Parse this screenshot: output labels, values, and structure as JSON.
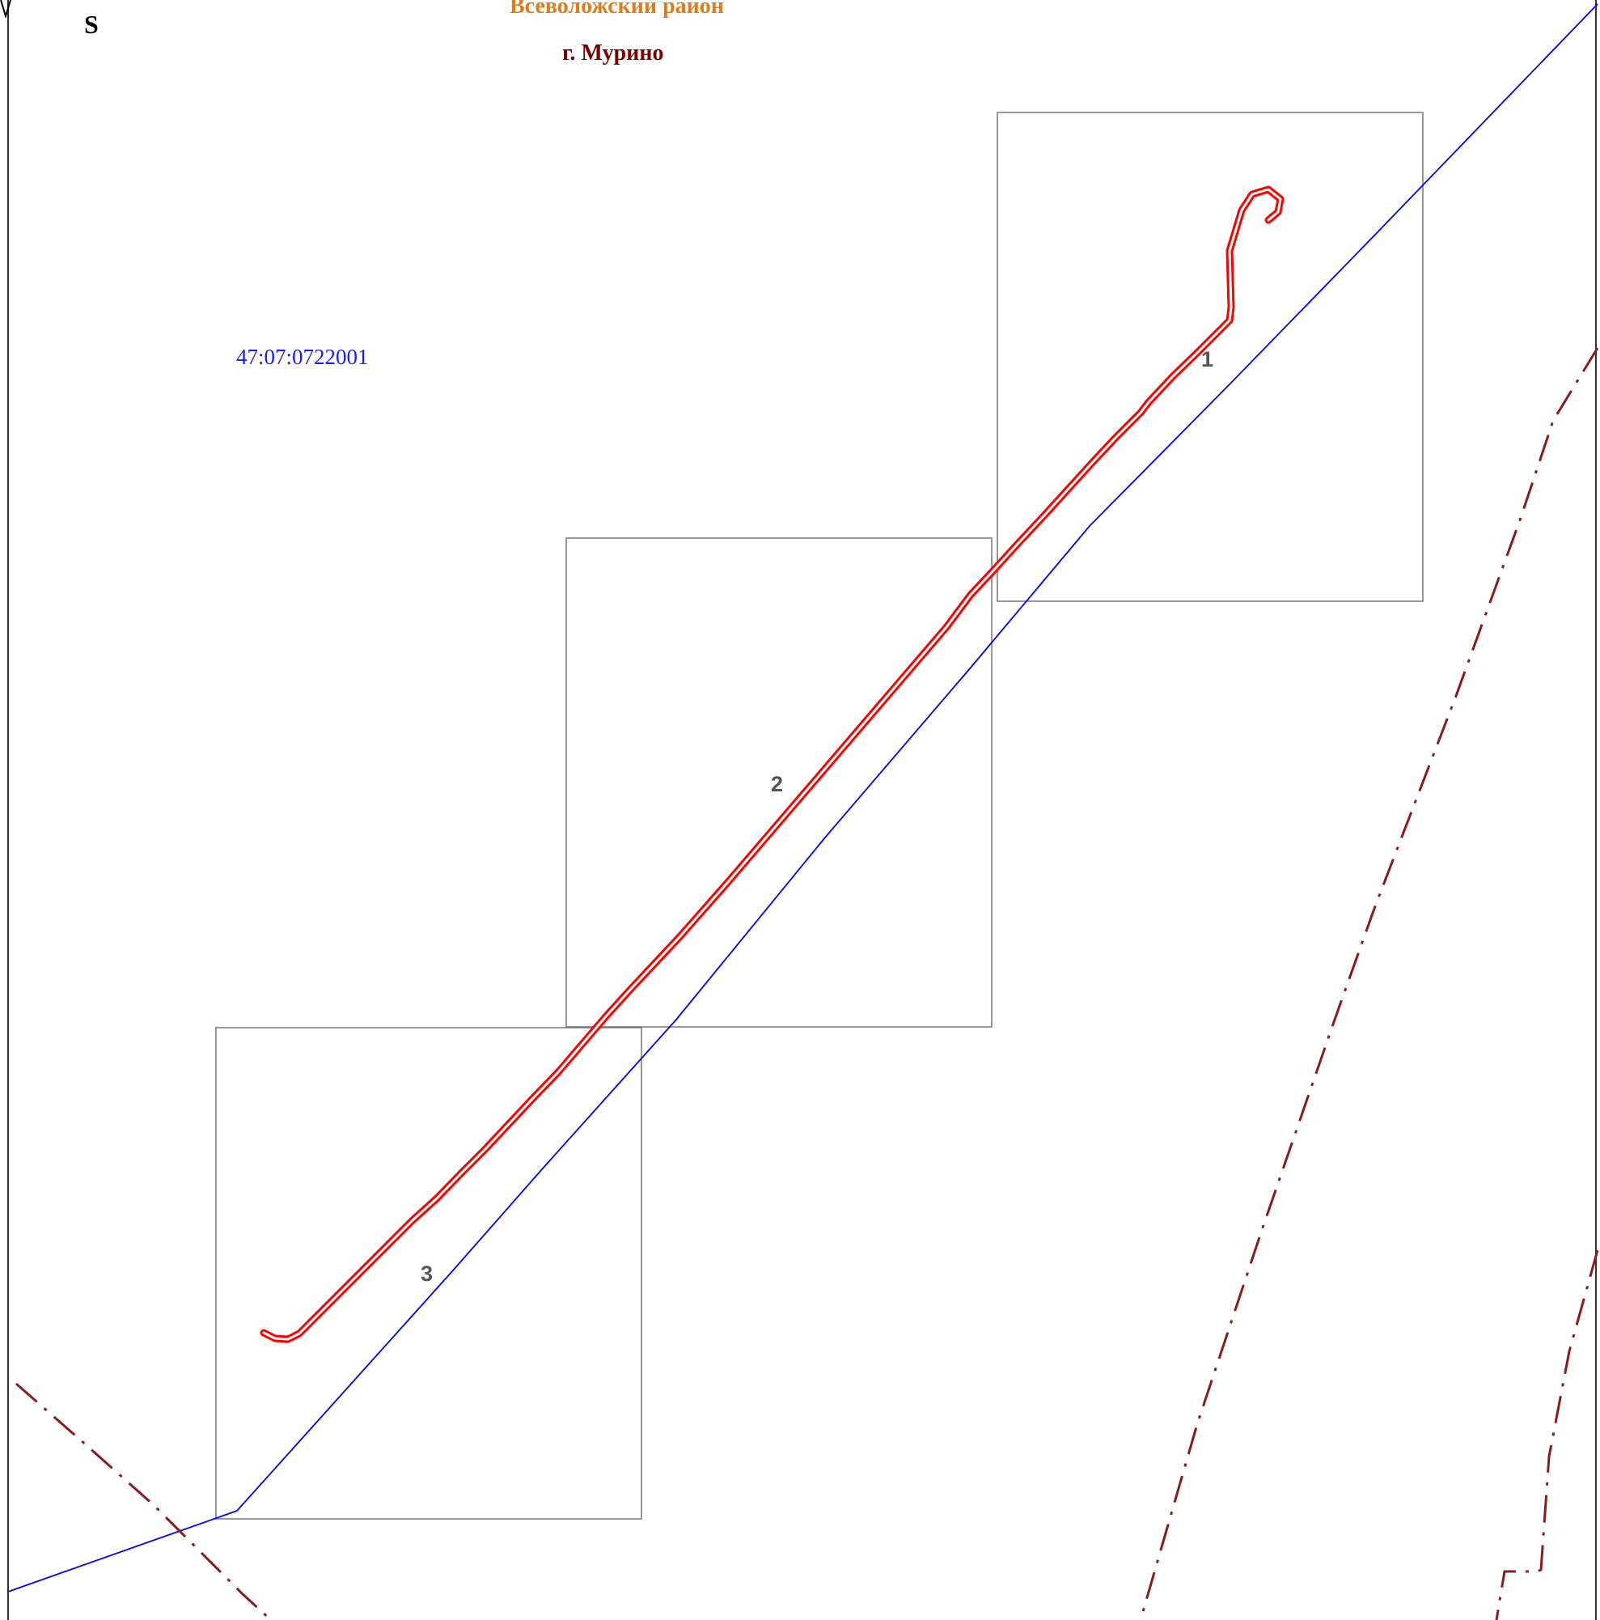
{
  "labels": {
    "district": "Всеволожский район",
    "town": "г. Мурино",
    "cadastral_quarter": "47:07:0722001",
    "compass_south": "S"
  },
  "sheets": [
    {
      "number": "1"
    },
    {
      "number": "2"
    },
    {
      "number": "3"
    }
  ],
  "colors": {
    "district_label": "#e07b1a",
    "town_label": "#7b0000",
    "cadastral_label": "#1a1aff",
    "cadastral_boundary": "#0000ff",
    "route": "#ff0000",
    "admin_boundary": "#8b1a1a",
    "sheet_frame": "#777777",
    "map_border": "#333333"
  },
  "icons": {
    "compass": "north-arrow-icon"
  }
}
